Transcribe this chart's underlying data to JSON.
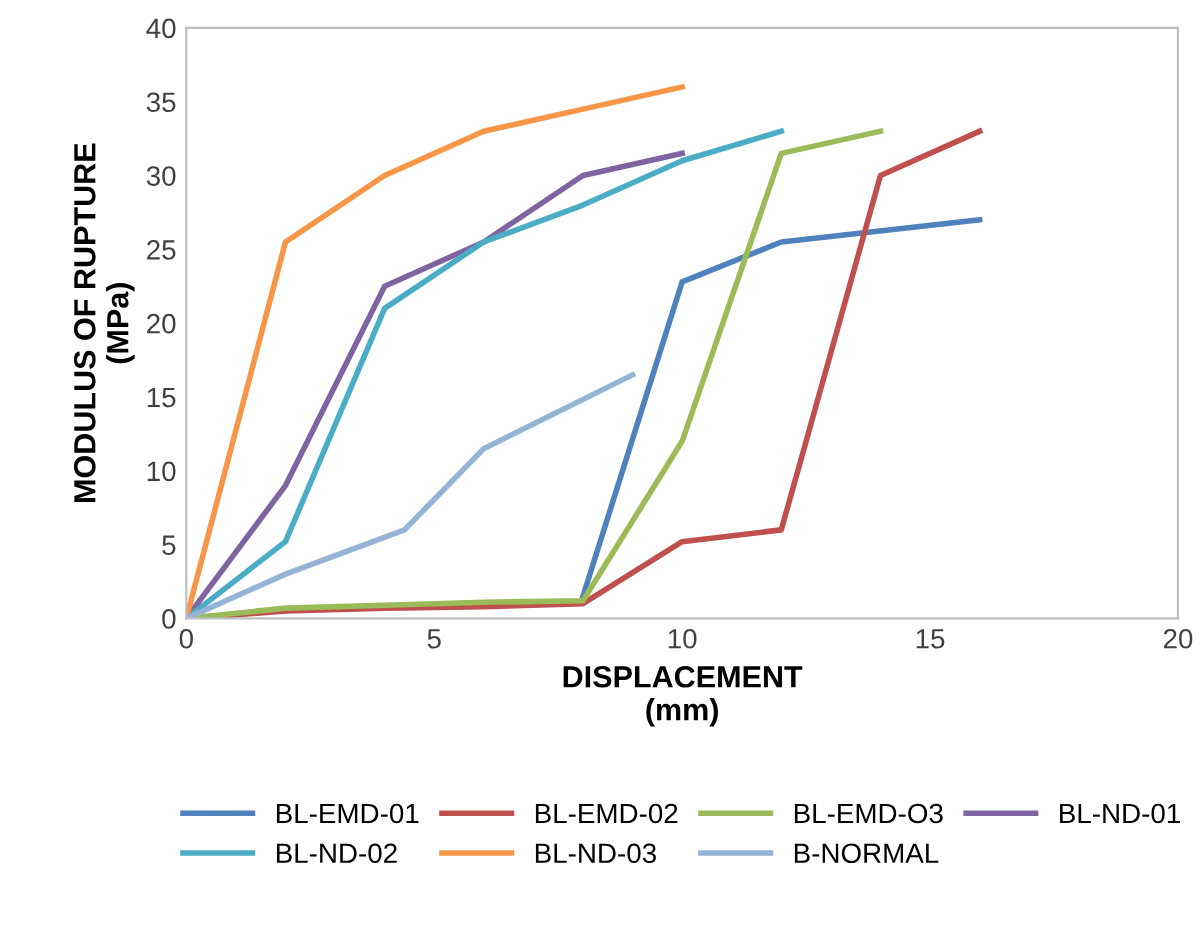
{
  "chart_data": {
    "type": "line",
    "xlabel": "DISPLACEMENT\n(mm)",
    "ylabel": "MODULUS OF RUPTURE\n(MPa)",
    "xlim": [
      0,
      20
    ],
    "xticks": [
      0,
      5,
      10,
      15,
      20
    ],
    "ylim": [
      0,
      40
    ],
    "yticks": [
      0,
      5,
      10,
      15,
      20,
      25,
      30,
      35,
      40
    ],
    "grid": false,
    "legend": "bottom",
    "marker": "none",
    "line_style": "solid",
    "series": [
      {
        "name": "BL-EMD-01",
        "color": "#4f81bd",
        "x": [
          0,
          2,
          4,
          6,
          8,
          10,
          12,
          16
        ],
        "values": [
          0,
          0.6,
          null,
          null,
          1.5,
          22.8,
          25.5,
          27
        ]
      },
      {
        "name": "BL-EMD-02",
        "color": "#c0504d",
        "x": [
          0,
          2,
          4,
          6,
          8,
          10,
          12,
          14,
          16
        ],
        "values": [
          0,
          0.5,
          0.7,
          0.8,
          1.0,
          5.2,
          6.0,
          30,
          33
        ]
      },
      {
        "name": "BL-EMD-O3",
        "color": "#9bbb59",
        "x": [
          0,
          2,
          4,
          6,
          8,
          10,
          12,
          14
        ],
        "values": [
          0,
          0.7,
          0.9,
          1.1,
          1.2,
          12,
          31.5,
          33
        ]
      },
      {
        "name": "BL-ND-01",
        "color": "#8064a2",
        "x": [
          0,
          2,
          4,
          6,
          8,
          10
        ],
        "values": [
          0,
          9,
          22.5,
          25.5,
          30,
          31.5
        ]
      },
      {
        "name": "BL-ND-02",
        "color": "#4bacc6",
        "x": [
          0,
          2,
          4,
          6,
          8,
          10,
          12
        ],
        "values": [
          0,
          5.2,
          21,
          25.5,
          28,
          31,
          33
        ]
      },
      {
        "name": "BL-ND-03",
        "color": "#f79646",
        "x": [
          0,
          2,
          4,
          6,
          8,
          10
        ],
        "values": [
          0,
          25.5,
          30,
          33,
          34.5,
          36
        ]
      },
      {
        "name": "B-NORMAL",
        "color": "#95b3d7",
        "x": [
          0,
          2,
          4.4,
          6,
          9
        ],
        "values": [
          0,
          3,
          6,
          11.5,
          16.5
        ]
      }
    ]
  }
}
